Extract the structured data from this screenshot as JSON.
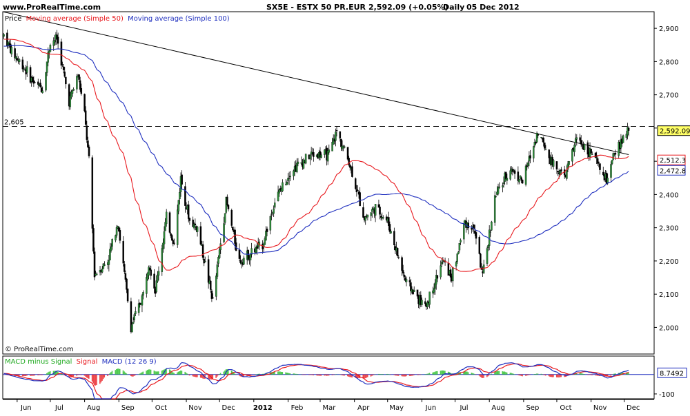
{
  "header": {
    "site": "www.ProRealTime.com",
    "symbol": "SX5E - ESTX 50 PR.EUR",
    "quote": "2,592.09 (+0.05%)",
    "period": "Daily",
    "date": "05 Dec 2012"
  },
  "copyright": "© ProRealTime.com",
  "price_legend": {
    "price": "Price",
    "ma50": "Moving average (Simple 50)",
    "ma100": "Moving average (Simple 100)"
  },
  "macd_legend": {
    "hist": "MACD minus Signal",
    "signal": "Signal",
    "macd": "MACD (12 26 9)"
  },
  "colors": {
    "candle_up": "#2e8b3a",
    "candle_down": "#000000",
    "ma50": "#e8191e",
    "ma100": "#1f2fbf",
    "trendline": "#000000",
    "macd": "#1f2fbf",
    "signal": "#e8191e",
    "hist": "#22bb22",
    "last_price_bg": "#ffff66"
  },
  "chart_data": [
    {
      "type": "candlestick",
      "title": "SX5E - ESTX 50 PR.EUR",
      "ylim": [
        1920,
        2950
      ],
      "y_ticks": [
        {
          "value": 2000,
          "label": "2,000"
        },
        {
          "value": 2100,
          "label": "2,100"
        },
        {
          "value": 2200,
          "label": "2,200"
        },
        {
          "value": 2300,
          "label": "2,300"
        },
        {
          "value": 2400,
          "label": "2,400"
        },
        {
          "value": 2500,
          "label": "2,500"
        },
        {
          "value": 2600,
          "label": "2,600"
        },
        {
          "value": 2700,
          "label": "2,700"
        },
        {
          "value": 2800,
          "label": "2,800"
        },
        {
          "value": 2900,
          "label": "2,900"
        }
      ],
      "x_ticks": [
        {
          "date": "2011-06-01",
          "label": "Jun"
        },
        {
          "date": "2011-07-01",
          "label": "Jul"
        },
        {
          "date": "2011-08-01",
          "label": "Aug"
        },
        {
          "date": "2011-09-01",
          "label": "Sep"
        },
        {
          "date": "2011-10-01",
          "label": "Oct"
        },
        {
          "date": "2011-11-01",
          "label": "Nov"
        },
        {
          "date": "2011-12-01",
          "label": "Dec"
        },
        {
          "date": "2012-01-01",
          "label": "2012",
          "bold": true
        },
        {
          "date": "2012-02-01",
          "label": "Feb"
        },
        {
          "date": "2012-03-01",
          "label": "Mar"
        },
        {
          "date": "2012-04-01",
          "label": "Apr"
        },
        {
          "date": "2012-05-01",
          "label": "May"
        },
        {
          "date": "2012-06-01",
          "label": "Jun"
        },
        {
          "date": "2012-07-01",
          "label": "Jul"
        },
        {
          "date": "2012-08-01",
          "label": "Aug"
        },
        {
          "date": "2012-09-01",
          "label": "Sep"
        },
        {
          "date": "2012-10-01",
          "label": "Oct"
        },
        {
          "date": "2012-11-01",
          "label": "Nov"
        },
        {
          "date": "2012-12-01",
          "label": "Dec"
        }
      ],
      "x_range": [
        "2011-05-19",
        "2012-12-28"
      ],
      "last_date": "2012-12-05",
      "close_keypoints": [
        {
          "date": "2011-05-20",
          "close": 2880
        },
        {
          "date": "2011-05-27",
          "close": 2830
        },
        {
          "date": "2011-06-08",
          "close": 2780
        },
        {
          "date": "2011-06-17",
          "close": 2730
        },
        {
          "date": "2011-06-24",
          "close": 2720
        },
        {
          "date": "2011-07-01",
          "close": 2860
        },
        {
          "date": "2011-07-07",
          "close": 2870
        },
        {
          "date": "2011-07-18",
          "close": 2680
        },
        {
          "date": "2011-07-26",
          "close": 2760
        },
        {
          "date": "2011-08-01",
          "close": 2640
        },
        {
          "date": "2011-08-05",
          "close": 2500
        },
        {
          "date": "2011-08-10",
          "close": 2160
        },
        {
          "date": "2011-08-22",
          "close": 2200
        },
        {
          "date": "2011-08-31",
          "close": 2320
        },
        {
          "date": "2011-09-12",
          "close": 2000
        },
        {
          "date": "2011-09-23",
          "close": 2100
        },
        {
          "date": "2011-09-28",
          "close": 2200
        },
        {
          "date": "2011-10-04",
          "close": 2110
        },
        {
          "date": "2011-10-14",
          "close": 2330
        },
        {
          "date": "2011-10-21",
          "close": 2250
        },
        {
          "date": "2011-10-27",
          "close": 2450
        },
        {
          "date": "2011-11-04",
          "close": 2320
        },
        {
          "date": "2011-11-11",
          "close": 2300
        },
        {
          "date": "2011-11-25",
          "close": 2080
        },
        {
          "date": "2011-12-07",
          "close": 2380
        },
        {
          "date": "2011-12-19",
          "close": 2200
        },
        {
          "date": "2012-01-09",
          "close": 2250
        },
        {
          "date": "2012-01-20",
          "close": 2380
        },
        {
          "date": "2012-02-03",
          "close": 2470
        },
        {
          "date": "2012-02-22",
          "close": 2520
        },
        {
          "date": "2012-03-09",
          "close": 2520
        },
        {
          "date": "2012-03-16",
          "close": 2590
        },
        {
          "date": "2012-03-27",
          "close": 2500
        },
        {
          "date": "2012-04-10",
          "close": 2330
        },
        {
          "date": "2012-04-20",
          "close": 2360
        },
        {
          "date": "2012-05-01",
          "close": 2320
        },
        {
          "date": "2012-05-17",
          "close": 2140
        },
        {
          "date": "2012-06-04",
          "close": 2060
        },
        {
          "date": "2012-06-20",
          "close": 2200
        },
        {
          "date": "2012-06-28",
          "close": 2150
        },
        {
          "date": "2012-07-10",
          "close": 2320
        },
        {
          "date": "2012-07-19",
          "close": 2290
        },
        {
          "date": "2012-07-26",
          "close": 2150
        },
        {
          "date": "2012-08-06",
          "close": 2390
        },
        {
          "date": "2012-08-20",
          "close": 2480
        },
        {
          "date": "2012-08-31",
          "close": 2440
        },
        {
          "date": "2012-09-14",
          "close": 2590
        },
        {
          "date": "2012-09-26",
          "close": 2500
        },
        {
          "date": "2012-10-08",
          "close": 2450
        },
        {
          "date": "2012-10-19",
          "close": 2570
        },
        {
          "date": "2012-11-02",
          "close": 2520
        },
        {
          "date": "2012-11-15",
          "close": 2440
        },
        {
          "date": "2012-11-23",
          "close": 2530
        },
        {
          "date": "2012-12-05",
          "close": 2592.09
        }
      ],
      "series": [
        {
          "name": "Price",
          "kind": "candles"
        },
        {
          "name": "Moving average (Simple 50)",
          "kind": "sma",
          "period": 50
        },
        {
          "name": "Moving average (Simple 100)",
          "kind": "sma",
          "period": 100
        }
      ],
      "trendline": [
        {
          "date": "2011-05-19",
          "value": 2950
        },
        {
          "date": "2012-12-05",
          "value": 2520
        }
      ],
      "reference_line": {
        "value": 2605,
        "label": "2,605",
        "style": "dashed"
      },
      "last_values": [
        {
          "series": "Price",
          "value": 2592.09,
          "label": "2,592.09"
        },
        {
          "series": "Moving average (Simple 50)",
          "value": 2512.3,
          "label": "2,512.3"
        },
        {
          "series": "Moving average (Simple 100)",
          "value": 2472.8,
          "label": "2,472.8"
        }
      ]
    },
    {
      "type": "macd",
      "title": "MACD (12 26 9)",
      "ylim": [
        -125,
        95
      ],
      "y_ticks": [
        {
          "value": -100,
          "label": "-100"
        }
      ],
      "zero_line": 0,
      "series": [
        {
          "name": "MACD minus Signal",
          "kind": "histogram"
        },
        {
          "name": "Signal",
          "kind": "line"
        },
        {
          "name": "MACD",
          "kind": "line"
        }
      ],
      "last_value": {
        "value": 8.7492,
        "label": "8.7492"
      }
    }
  ]
}
